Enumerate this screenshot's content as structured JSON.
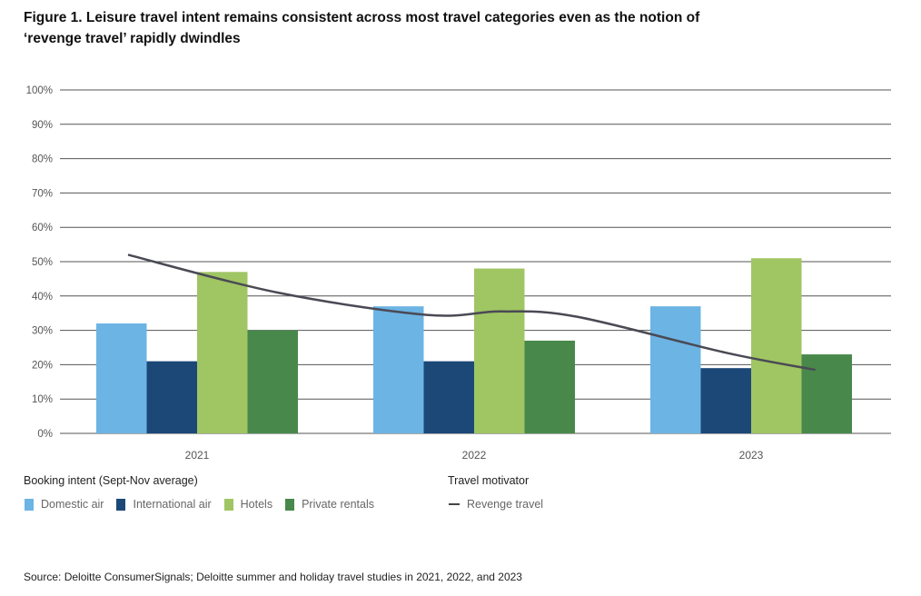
{
  "title": "Figure 1. Leisure travel intent remains consistent across most travel categories even as the notion of ‘revenge travel’ rapidly dwindles",
  "source": "Source: Deloitte ConsumerSignals; Deloitte summer and holiday travel studies in 2021, 2022, and 2023",
  "legend": {
    "bars_title": "Booking intent (Sept-Nov average)",
    "line_title": "Travel motivator",
    "items": [
      {
        "label": "Domestic air",
        "color": "#6cb4e4"
      },
      {
        "label": "International air",
        "color": "#1c4878"
      },
      {
        "label": "Hotels",
        "color": "#a0c563"
      },
      {
        "label": "Private rentals",
        "color": "#48894b"
      }
    ],
    "line_item": {
      "label": "Revenge travel",
      "color": "#4a4a55"
    }
  },
  "chart_data": {
    "type": "bar",
    "title": "Figure 1. Leisure travel intent remains consistent across most travel categories even as the notion of ‘revenge travel’ rapidly dwindles",
    "xlabel": "",
    "ylabel": "",
    "ylim": [
      0,
      100
    ],
    "yticks": [
      "0%",
      "10%",
      "20%",
      "30%",
      "40%",
      "50%",
      "60%",
      "70%",
      "80%",
      "90%",
      "100%"
    ],
    "grid": true,
    "legend_position": "bottom-left",
    "categories": [
      "2021",
      "2022",
      "2023"
    ],
    "series": [
      {
        "name": "Domestic air",
        "type": "bar",
        "color": "#6cb4e4",
        "values": [
          32,
          37,
          37
        ]
      },
      {
        "name": "International air",
        "type": "bar",
        "color": "#1c4878",
        "values": [
          21,
          21,
          19
        ]
      },
      {
        "name": "Hotels",
        "type": "bar",
        "color": "#a0c563",
        "values": [
          47,
          48,
          51
        ]
      },
      {
        "name": "Private rentals",
        "type": "bar",
        "color": "#48894b",
        "values": [
          30,
          27,
          23
        ]
      },
      {
        "name": "Revenge travel",
        "type": "line",
        "color": "#4a4a55",
        "x": [
          0.0,
          0.5,
          1.0,
          1.25,
          1.5,
          2.0,
          2.3
        ],
        "values": [
          52,
          41,
          34.5,
          35.5,
          34,
          23.5,
          18.5
        ]
      }
    ]
  }
}
